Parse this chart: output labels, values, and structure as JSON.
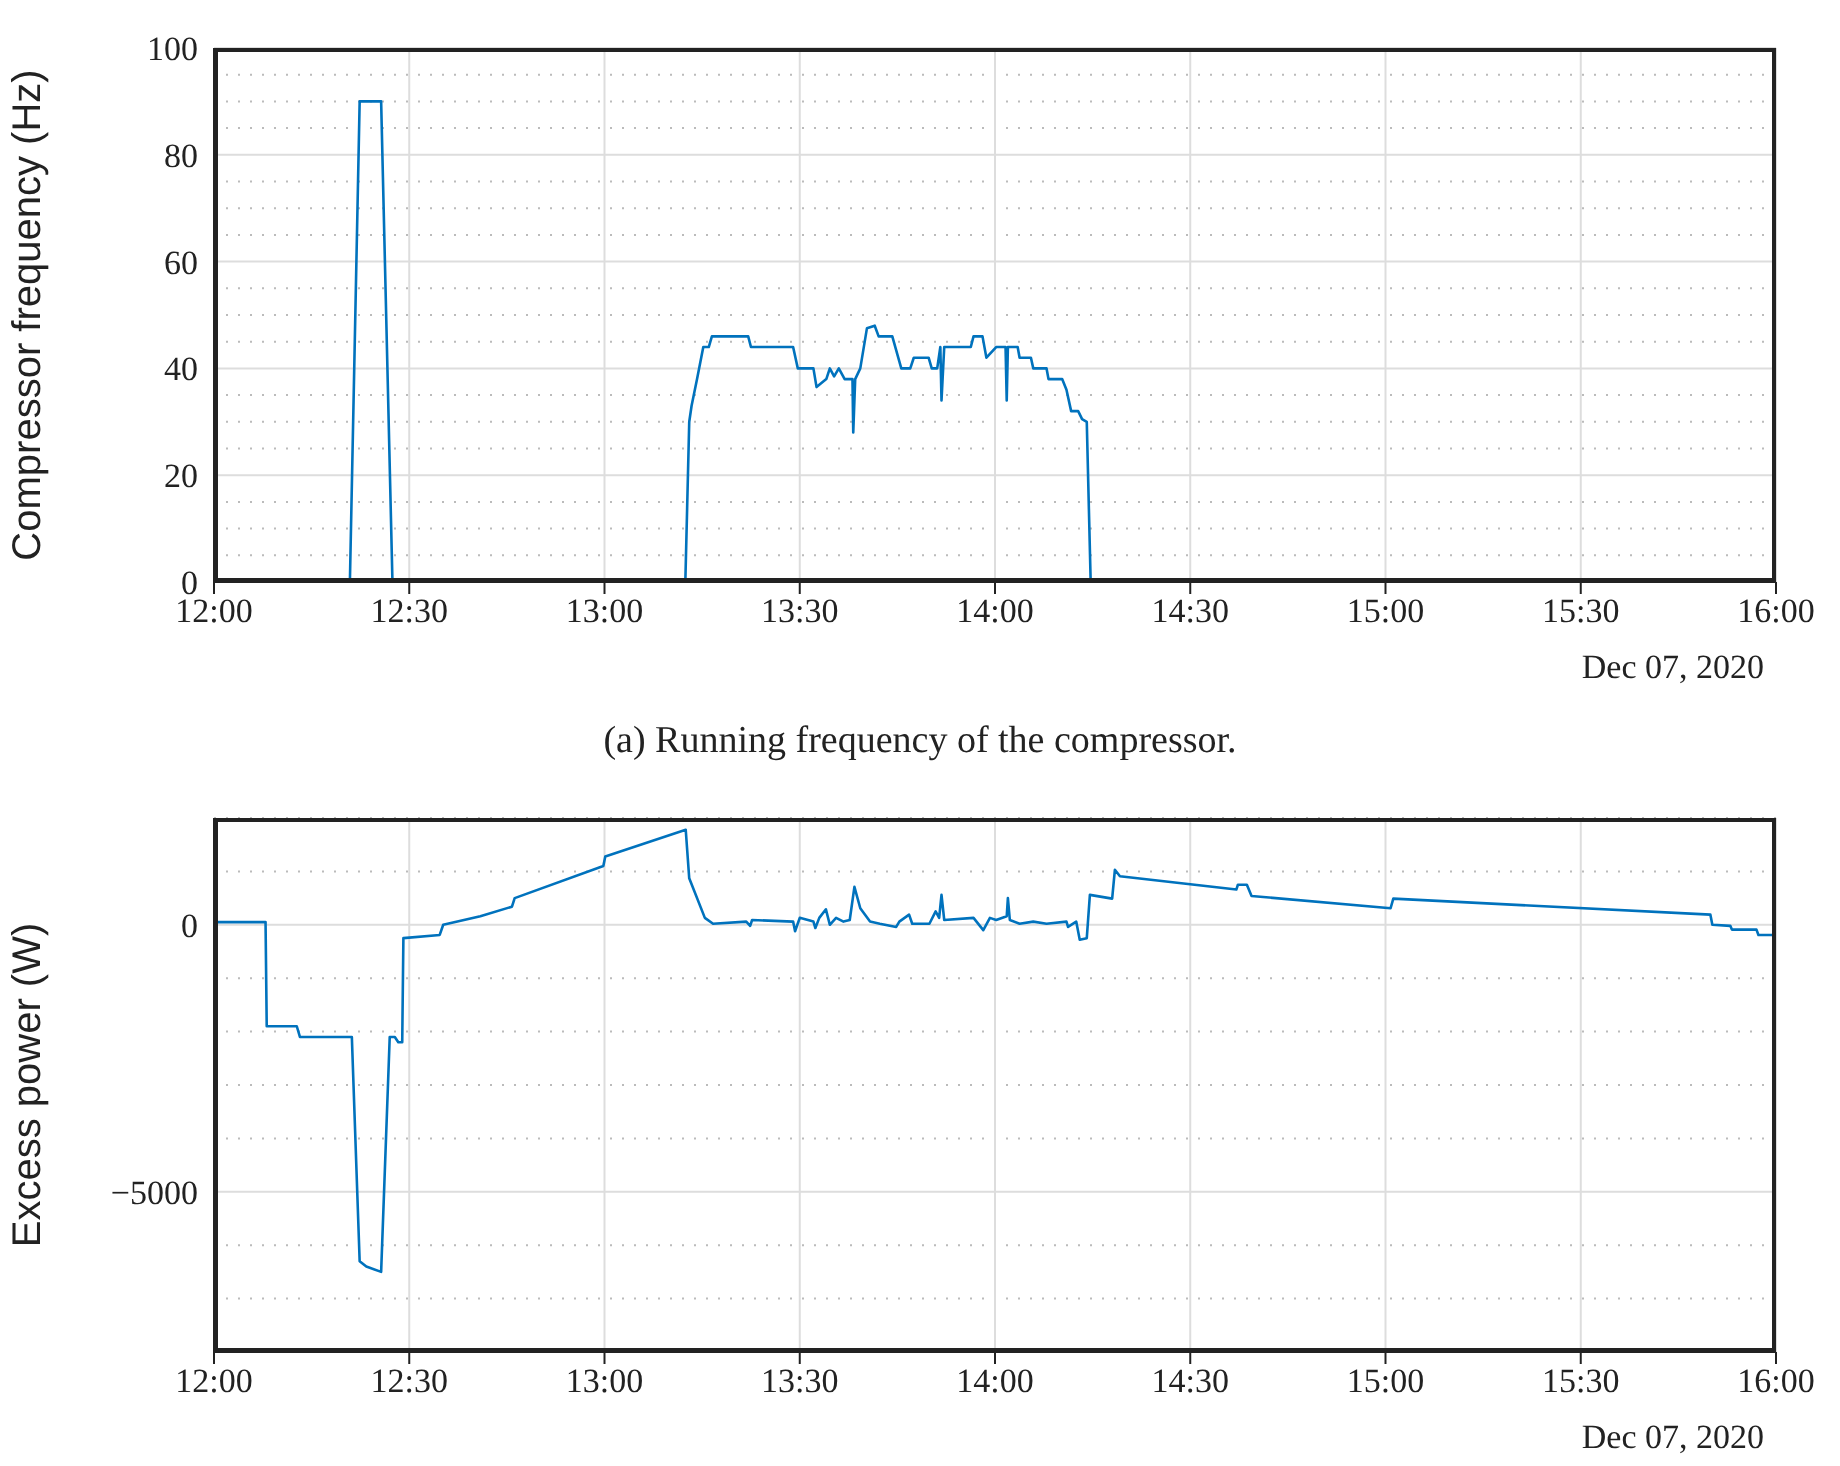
{
  "chart_data": [
    {
      "type": "line",
      "ylabel": "Compressor frequency (Hz)",
      "annotations": [
        "Dec 07, 2020",
        "(a) Running frequency of the compressor."
      ],
      "x": [
        12,
        12.348,
        12.373,
        12.428,
        12.457,
        13.207,
        13.217,
        13.223,
        13.237,
        13.253,
        13.267,
        13.275,
        13.368,
        13.375,
        13.483,
        13.495,
        13.535,
        13.543,
        13.568,
        13.577,
        13.588,
        13.6,
        13.615,
        13.635,
        13.637,
        13.642,
        13.655,
        13.672,
        13.692,
        13.702,
        13.737,
        13.76,
        13.783,
        13.792,
        13.83,
        13.838,
        13.852,
        13.86,
        13.863,
        13.87,
        13.938,
        13.945,
        13.968,
        13.978,
        14.003,
        14.027,
        14.03,
        14.033,
        14.058,
        14.063,
        14.092,
        14.098,
        14.132,
        14.137,
        14.172,
        14.183,
        14.195,
        14.213,
        14.223,
        14.235,
        14.245,
        16
      ],
      "series": [
        {
          "color": "#0072bd",
          "values": [
            0,
            0,
            90,
            90,
            0,
            0,
            30,
            33,
            38,
            44,
            44,
            46,
            46,
            44,
            44,
            40,
            40,
            36.5,
            38,
            40,
            38.5,
            40,
            38,
            38,
            28,
            38,
            40,
            47.5,
            48,
            46,
            46,
            40,
            40,
            42,
            42,
            40,
            40,
            44,
            34,
            44,
            44,
            46,
            46,
            42,
            44,
            44,
            34,
            44,
            44,
            42,
            42,
            40,
            40,
            38,
            38,
            36,
            32,
            32,
            30.5,
            30,
            0,
            0
          ]
        }
      ],
      "xlim": [
        12,
        16
      ],
      "xticks": [
        {
          "value": 12,
          "label": "12:00"
        },
        {
          "value": 12.5,
          "label": "12:30"
        },
        {
          "value": 13,
          "label": "13:00"
        },
        {
          "value": 13.5,
          "label": "13:30"
        },
        {
          "value": 14,
          "label": "14:00"
        },
        {
          "value": 14.5,
          "label": "14:30"
        },
        {
          "value": 15,
          "label": "15:00"
        },
        {
          "value": 15.5,
          "label": "15:30"
        },
        {
          "value": 16,
          "label": "16:00"
        }
      ],
      "ylim": [
        0,
        100
      ],
      "yticks": [
        0,
        {
          "value": 5,
          "label": null
        },
        {
          "value": 10,
          "label": null
        },
        {
          "value": 15,
          "label": null
        },
        20,
        {
          "value": 25,
          "label": null
        },
        {
          "value": 30,
          "label": null
        },
        {
          "value": 35,
          "label": null
        },
        40,
        {
          "value": 45,
          "label": null
        },
        {
          "value": 50,
          "label": null
        },
        {
          "value": 55,
          "label": null
        },
        60,
        {
          "value": 65,
          "label": null
        },
        {
          "value": 70,
          "label": null
        },
        {
          "value": 75,
          "label": null
        },
        80,
        {
          "value": 85,
          "label": null
        },
        {
          "value": 90,
          "label": null
        },
        {
          "value": 95,
          "label": null
        },
        100
      ],
      "grid": true,
      "marker": "none",
      "line_style": "solid"
    },
    {
      "type": "line",
      "ylabel": "Excess power (W)",
      "annotations": [
        "Dec 07, 2020"
      ],
      "x": [
        12,
        12.132,
        12.135,
        12.212,
        12.22,
        12.353,
        12.373,
        12.39,
        12.428,
        12.45,
        12.463,
        12.472,
        12.482,
        12.485,
        12.578,
        12.587,
        12.682,
        12.763,
        12.77,
        12.997,
        13.002,
        13.208,
        13.217,
        13.257,
        13.278,
        13.363,
        13.373,
        13.378,
        13.483,
        13.488,
        13.5,
        13.535,
        13.54,
        13.55,
        13.567,
        13.577,
        13.593,
        13.612,
        13.628,
        13.64,
        13.655,
        13.68,
        13.705,
        13.747,
        13.755,
        13.78,
        13.788,
        13.832,
        13.848,
        13.857,
        13.863,
        13.87,
        13.945,
        13.97,
        13.987,
        14.003,
        14.03,
        14.033,
        14.038,
        14.063,
        14.098,
        14.132,
        14.183,
        14.187,
        14.208,
        14.217,
        14.235,
        14.243,
        14.3,
        14.307,
        14.32,
        14.618,
        14.622,
        14.645,
        14.657,
        15.013,
        15.02,
        15.832,
        15.837,
        15.883,
        15.887,
        15.95,
        15.955,
        16
      ],
      "series": [
        {
          "color": "#0072bd",
          "values": [
            50,
            50,
            -1900,
            -1900,
            -2100,
            -2100,
            -6300,
            -6400,
            -6500,
            -2100,
            -2100,
            -2200,
            -2200,
            -250,
            -190,
            0,
            160,
            340,
            500,
            1100,
            1280,
            1780,
            870,
            130,
            20,
            60,
            -20,
            90,
            60,
            -120,
            130,
            60,
            -60,
            130,
            290,
            0,
            130,
            60,
            90,
            710,
            310,
            60,
            20,
            -40,
            60,
            190,
            20,
            20,
            250,
            130,
            560,
            90,
            130,
            -100,
            130,
            90,
            160,
            500,
            90,
            20,
            60,
            20,
            60,
            -40,
            60,
            -280,
            -250,
            560,
            490,
            1030,
            910,
            660,
            750,
            750,
            540,
            310,
            490,
            190,
            0,
            -20,
            -90,
            -90,
            -190,
            -190
          ]
        }
      ],
      "xlim": [
        12,
        16
      ],
      "xticks": [
        {
          "value": 12,
          "label": "12:00"
        },
        {
          "value": 12.5,
          "label": "12:30"
        },
        {
          "value": 13,
          "label": "13:00"
        },
        {
          "value": 13.5,
          "label": "13:30"
        },
        {
          "value": 14,
          "label": "14:00"
        },
        {
          "value": 14.5,
          "label": "14:30"
        },
        {
          "value": 15,
          "label": "15:00"
        },
        {
          "value": 15.5,
          "label": "15:30"
        },
        {
          "value": 16,
          "label": "16:00"
        }
      ],
      "ylim": [
        -8000,
        2000
      ],
      "yticks": [
        {
          "value": -8000,
          "label": null
        },
        {
          "value": -7000,
          "label": null
        },
        {
          "value": -6000,
          "label": null
        },
        {
          "value": -5000,
          "label": "−5000"
        },
        {
          "value": -4000,
          "label": null
        },
        {
          "value": -3000,
          "label": null
        },
        {
          "value": -2000,
          "label": null
        },
        {
          "value": -1000,
          "label": null
        },
        0,
        {
          "value": 1000,
          "label": null
        },
        {
          "value": 2000,
          "label": null
        }
      ],
      "grid": true,
      "marker": "none",
      "line_style": "solid"
    }
  ]
}
